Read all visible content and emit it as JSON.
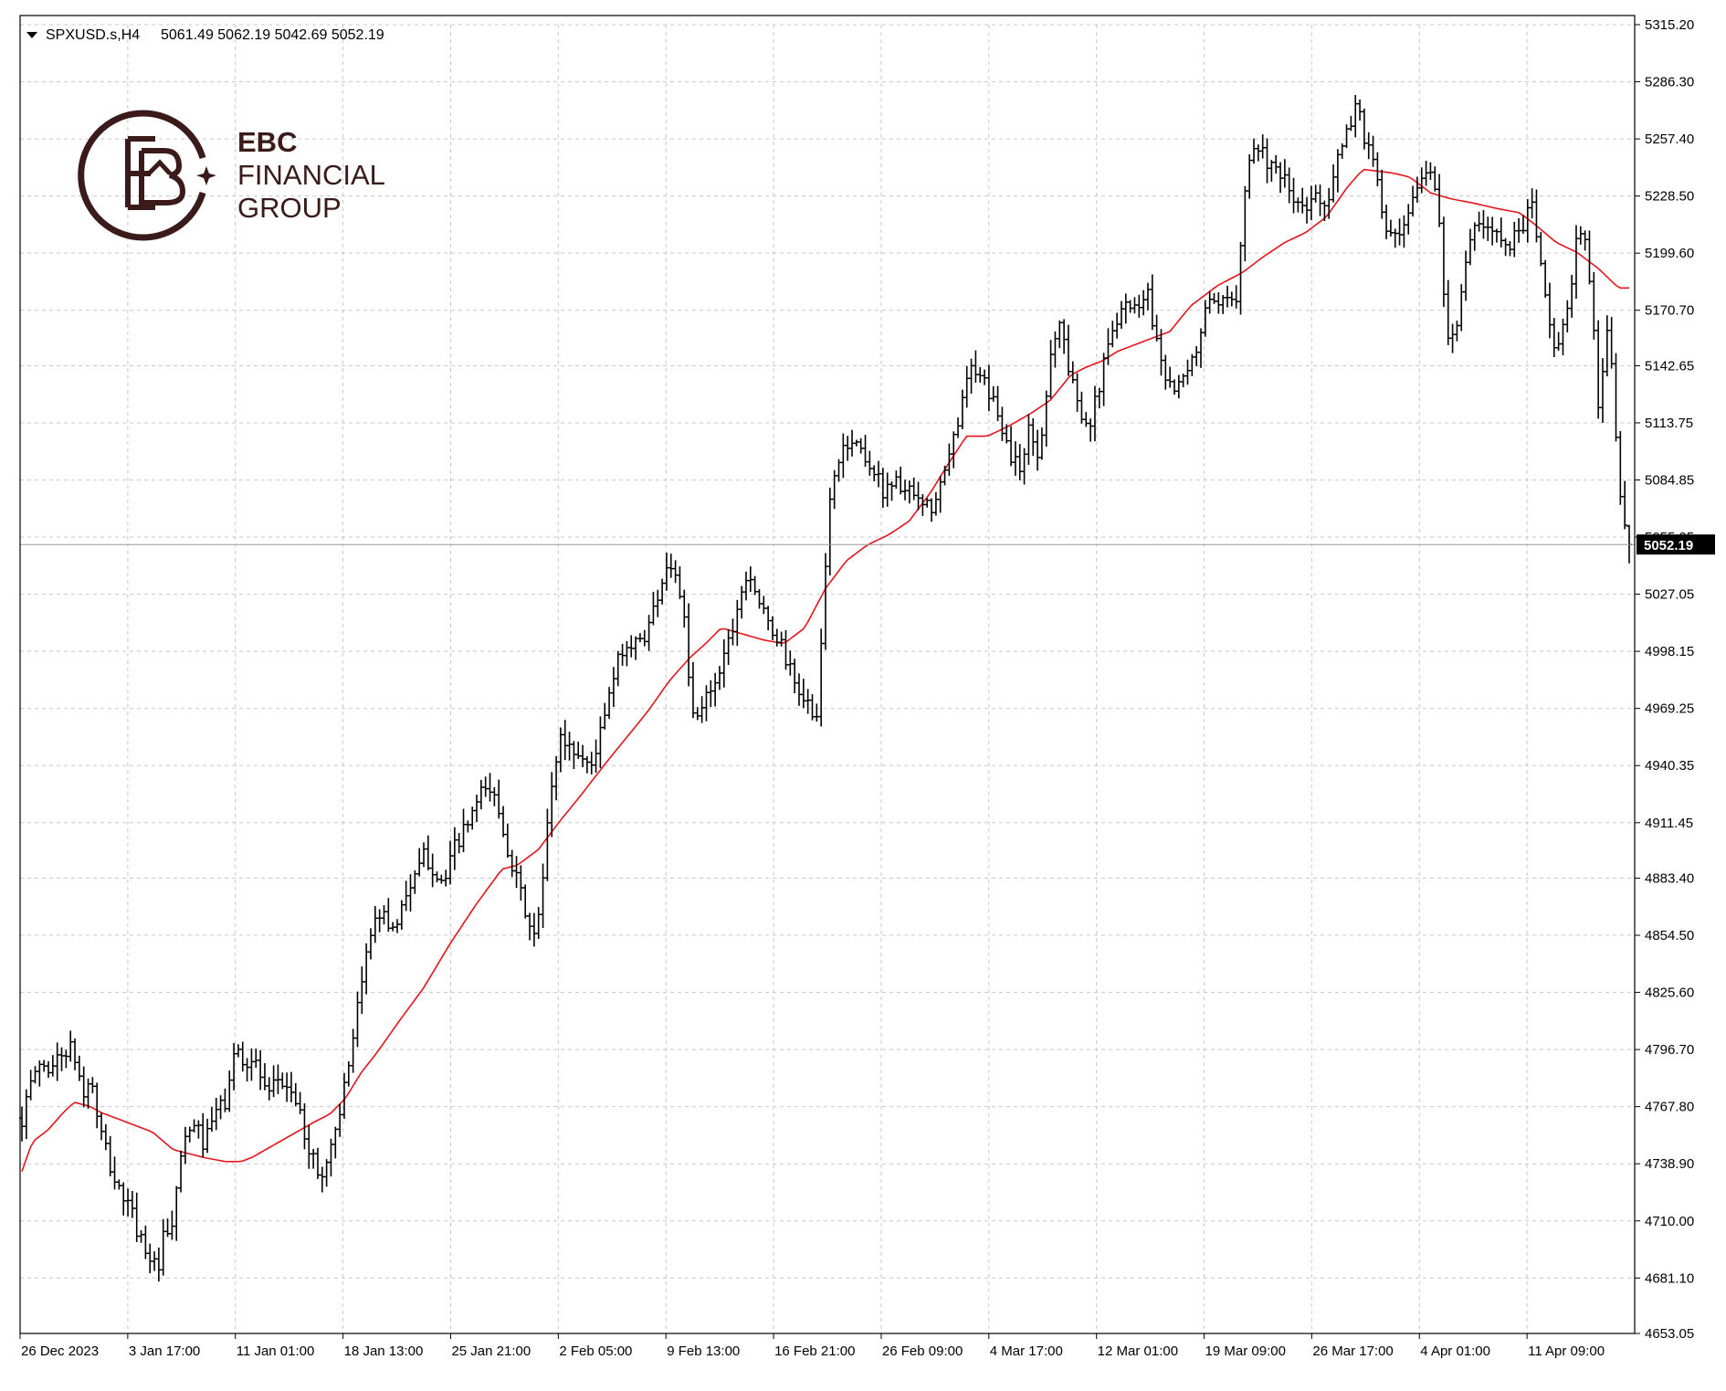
{
  "header": {
    "symbol_label": "SPXUSD.s,H4",
    "ohlc_label": "5061.49 5062.19 5042.69 5052.19",
    "menu_arrow_icon": "triangle-down-icon"
  },
  "brand": {
    "line1": "EBC",
    "line2": "FINANCIAL",
    "line3": "GROUP",
    "logo_icon": "ebc-monogram-logo",
    "color": "#3b1a1a"
  },
  "colors": {
    "bars": "#000000",
    "moving_average": "#e8141c",
    "grid": "#c8c8c8",
    "price_tag_bg": "#000000",
    "price_tag_text": "#ffffff"
  },
  "chart_data": {
    "type": "ohlc-bar",
    "symbol": "SPXUSD.s",
    "timeframe": "H4",
    "last_price": 5052.19,
    "last_price_label": "5052.19",
    "ohlc_last": {
      "open": 5061.49,
      "high": 5062.19,
      "low": 5042.69,
      "close": 5052.19
    },
    "ylim": [
      4653.05,
      5315.2
    ],
    "y_ticks": [
      "5315.20",
      "5286.30",
      "5257.40",
      "5228.50",
      "5199.60",
      "5170.70",
      "5142.65",
      "5113.75",
      "5084.85",
      "5055.95",
      "5027.05",
      "4998.15",
      "4969.25",
      "4940.35",
      "4911.45",
      "4883.40",
      "4854.50",
      "4825.60",
      "4796.70",
      "4767.80",
      "4738.90",
      "4710.00",
      "4681.10",
      "4653.05"
    ],
    "x_ticks": [
      "26 Dec 2023",
      "3 Jan 17:00",
      "11 Jan 01:00",
      "18 Jan 13:00",
      "25 Jan 21:00",
      "2 Feb 05:00",
      "9 Feb 13:00",
      "16 Feb 21:00",
      "26 Feb 09:00",
      "4 Mar 17:00",
      "12 Mar 01:00",
      "19 Mar 09:00",
      "26 Mar 17:00",
      "4 Apr 01:00",
      "11 Apr 09:00"
    ],
    "grid": true,
    "bar_count": 365,
    "close_anchors": [
      [
        0,
        4762
      ],
      [
        6,
        4790
      ],
      [
        10,
        4787
      ],
      [
        16,
        4795
      ],
      [
        18,
        4798
      ],
      [
        20,
        4793
      ],
      [
        24,
        4772
      ],
      [
        26,
        4784
      ],
      [
        30,
        4755
      ],
      [
        36,
        4728
      ],
      [
        40,
        4720
      ],
      [
        46,
        4700
      ],
      [
        50,
        4690
      ],
      [
        52,
        4682
      ],
      [
        54,
        4700
      ],
      [
        58,
        4705
      ],
      [
        60,
        4740
      ],
      [
        66,
        4760
      ],
      [
        70,
        4748
      ],
      [
        74,
        4765
      ],
      [
        78,
        4770
      ],
      [
        82,
        4798
      ],
      [
        86,
        4790
      ],
      [
        90,
        4790
      ],
      [
        94,
        4770
      ],
      [
        98,
        4782
      ],
      [
        104,
        4775
      ],
      [
        108,
        4755
      ],
      [
        112,
        4740
      ],
      [
        114,
        4730
      ],
      [
        118,
        4745
      ],
      [
        122,
        4768
      ],
      [
        126,
        4790
      ],
      [
        130,
        4830
      ],
      [
        134,
        4858
      ],
      [
        136,
        4870
      ],
      [
        140,
        4860
      ],
      [
        144,
        4860
      ],
      [
        146,
        4875
      ],
      [
        150,
        4880
      ],
      [
        154,
        4895
      ],
      [
        158,
        4888
      ],
      [
        162,
        4880
      ],
      [
        166,
        4900
      ],
      [
        170,
        4908
      ],
      [
        174,
        4920
      ],
      [
        178,
        4930
      ],
      [
        182,
        4922
      ],
      [
        186,
        4900
      ],
      [
        190,
        4880
      ],
      [
        194,
        4862
      ],
      [
        196,
        4850
      ],
      [
        198,
        4865
      ],
      [
        200,
        4885
      ],
      [
        202,
        4920
      ],
      [
        206,
        4955
      ],
      [
        210,
        4950
      ],
      [
        214,
        4945
      ],
      [
        218,
        4940
      ],
      [
        222,
        4958
      ],
      [
        226,
        4980
      ],
      [
        230,
        5000
      ],
      [
        236,
        5002
      ],
      [
        240,
        5010
      ],
      [
        246,
        5038
      ],
      [
        248,
        5045
      ],
      [
        252,
        5030
      ],
      [
        254,
        5010
      ],
      [
        256,
        4975
      ],
      [
        258,
        4960
      ],
      [
        262,
        4975
      ],
      [
        266,
        4985
      ],
      [
        270,
        5000
      ],
      [
        274,
        5020
      ],
      [
        278,
        5040
      ],
      [
        280,
        5035
      ],
      [
        282,
        5025
      ],
      [
        286,
        5010
      ],
      [
        290,
        5005
      ],
      [
        294,
        4990
      ],
      [
        296,
        4980
      ],
      [
        300,
        4975
      ],
      [
        304,
        4960
      ],
      [
        306,
        4990
      ],
      [
        308,
        5040
      ],
      [
        310,
        5080
      ],
      [
        314,
        5100
      ],
      [
        318,
        5105
      ],
      [
        322,
        5100
      ],
      [
        326,
        5090
      ],
      [
        330,
        5080
      ],
      [
        334,
        5085
      ],
      [
        338,
        5080
      ],
      [
        342,
        5075
      ],
      [
        346,
        5070
      ],
      [
        350,
        5072
      ],
      [
        354,
        5090
      ],
      [
        358,
        5110
      ],
      [
        362,
        5140
      ],
      [
        366,
        5138
      ],
      [
        370,
        5130
      ],
      [
        374,
        5120
      ],
      [
        378,
        5100
      ],
      [
        382,
        5090
      ],
      [
        386,
        5110
      ],
      [
        390,
        5095
      ],
      [
        394,
        5150
      ],
      [
        398,
        5165
      ],
      [
        402,
        5135
      ],
      [
        406,
        5120
      ],
      [
        410,
        5115
      ],
      [
        414,
        5140
      ],
      [
        418,
        5160
      ],
      [
        422,
        5178
      ],
      [
        426,
        5170
      ],
      [
        430,
        5180
      ],
      [
        432,
        5178
      ],
      [
        434,
        5160
      ],
      [
        438,
        5140
      ],
      [
        442,
        5130
      ],
      [
        446,
        5135
      ],
      [
        450,
        5150
      ],
      [
        454,
        5175
      ],
      [
        458,
        5170
      ],
      [
        462,
        5175
      ],
      [
        466,
        5180
      ],
      [
        468,
        5230
      ],
      [
        472,
        5255
      ],
      [
        476,
        5250
      ],
      [
        480,
        5240
      ],
      [
        484,
        5235
      ],
      [
        488,
        5225
      ],
      [
        492,
        5220
      ],
      [
        496,
        5230
      ],
      [
        500,
        5225
      ],
      [
        504,
        5245
      ],
      [
        508,
        5260
      ],
      [
        510,
        5270
      ],
      [
        512,
        5278
      ],
      [
        514,
        5260
      ],
      [
        518,
        5245
      ],
      [
        522,
        5215
      ],
      [
        526,
        5205
      ],
      [
        530,
        5210
      ],
      [
        534,
        5230
      ],
      [
        538,
        5242
      ],
      [
        542,
        5235
      ],
      [
        546,
        5160
      ],
      [
        550,
        5165
      ],
      [
        554,
        5200
      ],
      [
        558,
        5215
      ],
      [
        562,
        5210
      ],
      [
        566,
        5212
      ],
      [
        570,
        5205
      ],
      [
        574,
        5210
      ],
      [
        578,
        5225
      ],
      [
        580,
        5215
      ],
      [
        584,
        5175
      ],
      [
        588,
        5150
      ],
      [
        592,
        5165
      ],
      [
        596,
        5210
      ],
      [
        600,
        5200
      ],
      [
        602,
        5170
      ],
      [
        604,
        5120
      ],
      [
        606,
        5145
      ],
      [
        608,
        5165
      ],
      [
        610,
        5125
      ],
      [
        612,
        5085
      ],
      [
        614,
        5060
      ],
      [
        616,
        5052
      ]
    ],
    "moving_average_anchors": [
      [
        0,
        4735
      ],
      [
        4,
        4750
      ],
      [
        10,
        4756
      ],
      [
        16,
        4765
      ],
      [
        20,
        4770
      ],
      [
        26,
        4768
      ],
      [
        30,
        4765
      ],
      [
        40,
        4760
      ],
      [
        50,
        4755
      ],
      [
        58,
        4746
      ],
      [
        64,
        4744
      ],
      [
        70,
        4742
      ],
      [
        78,
        4740
      ],
      [
        84,
        4740
      ],
      [
        88,
        4742
      ],
      [
        96,
        4748
      ],
      [
        104,
        4754
      ],
      [
        112,
        4760
      ],
      [
        118,
        4764
      ],
      [
        124,
        4772
      ],
      [
        130,
        4785
      ],
      [
        136,
        4795
      ],
      [
        144,
        4810
      ],
      [
        154,
        4828
      ],
      [
        164,
        4850
      ],
      [
        174,
        4870
      ],
      [
        184,
        4888
      ],
      [
        190,
        4890
      ],
      [
        198,
        4898
      ],
      [
        206,
        4912
      ],
      [
        214,
        4925
      ],
      [
        224,
        4942
      ],
      [
        232,
        4955
      ],
      [
        240,
        4968
      ],
      [
        248,
        4983
      ],
      [
        256,
        4995
      ],
      [
        262,
        5002
      ],
      [
        268,
        5010
      ],
      [
        276,
        5007
      ],
      [
        284,
        5004
      ],
      [
        292,
        5002
      ],
      [
        300,
        5010
      ],
      [
        308,
        5030
      ],
      [
        316,
        5044
      ],
      [
        324,
        5052
      ],
      [
        332,
        5057
      ],
      [
        340,
        5064
      ],
      [
        348,
        5078
      ],
      [
        356,
        5095
      ],
      [
        362,
        5107
      ],
      [
        370,
        5107
      ],
      [
        378,
        5112
      ],
      [
        386,
        5118
      ],
      [
        394,
        5125
      ],
      [
        402,
        5138
      ],
      [
        408,
        5142
      ],
      [
        414,
        5145
      ],
      [
        420,
        5150
      ],
      [
        430,
        5155
      ],
      [
        440,
        5160
      ],
      [
        448,
        5173
      ],
      [
        458,
        5183
      ],
      [
        468,
        5190
      ],
      [
        476,
        5198
      ],
      [
        484,
        5205
      ],
      [
        492,
        5210
      ],
      [
        500,
        5218
      ],
      [
        508,
        5233
      ],
      [
        514,
        5242
      ],
      [
        520,
        5241
      ],
      [
        526,
        5240
      ],
      [
        532,
        5238
      ],
      [
        540,
        5230
      ],
      [
        548,
        5227
      ],
      [
        556,
        5225
      ],
      [
        566,
        5222
      ],
      [
        574,
        5220
      ],
      [
        580,
        5214
      ],
      [
        588,
        5205
      ],
      [
        596,
        5200
      ],
      [
        604,
        5192
      ],
      [
        612,
        5182
      ]
    ]
  }
}
